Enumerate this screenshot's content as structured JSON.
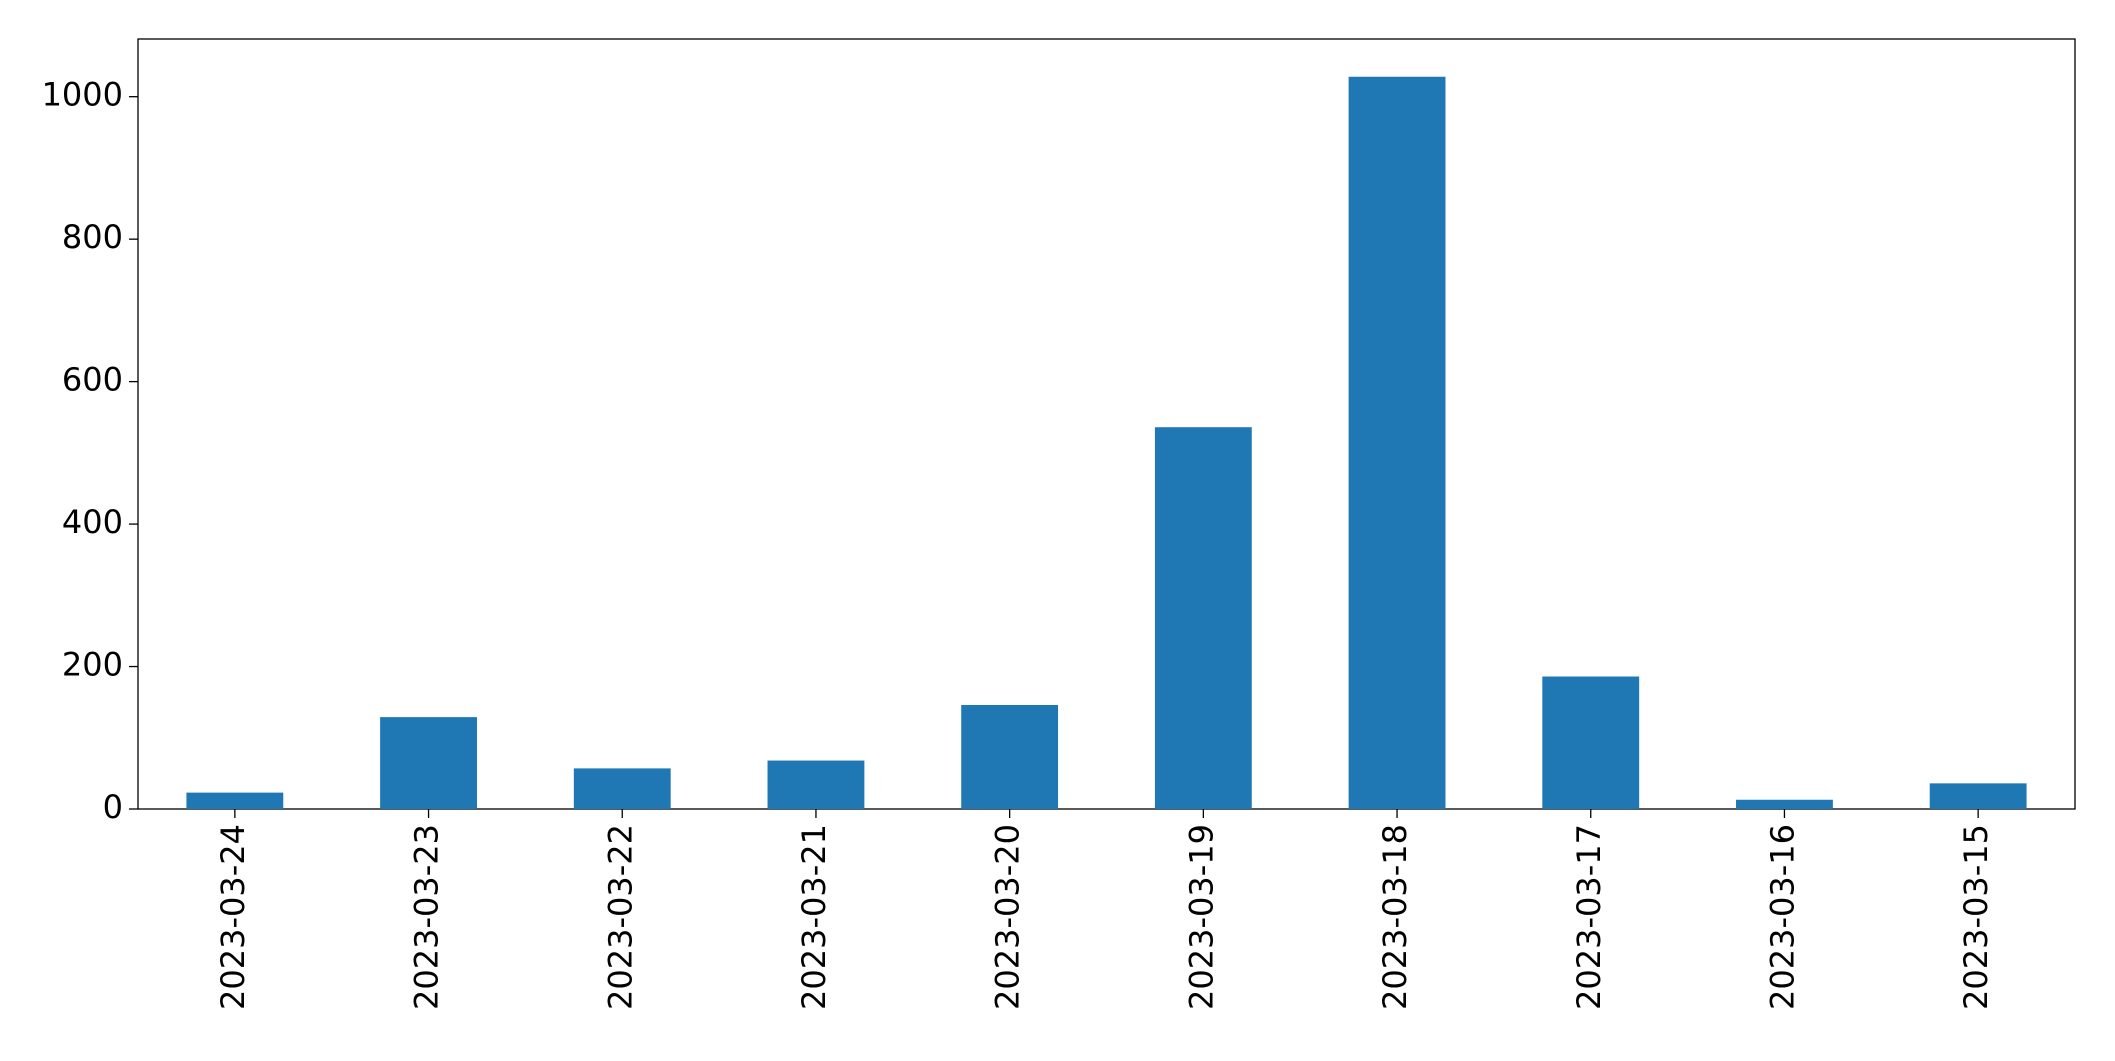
{
  "chart_data": {
    "type": "bar",
    "categories": [
      "2023-03-24",
      "2023-03-23",
      "2023-03-22",
      "2023-03-21",
      "2023-03-20",
      "2023-03-19",
      "2023-03-18",
      "2023-03-17",
      "2023-03-16",
      "2023-03-15"
    ],
    "values": [
      23,
      129,
      57,
      68,
      146,
      536,
      1028,
      186,
      13,
      36
    ],
    "color": "#1f77b4",
    "ylim": [
      0,
      1081
    ],
    "yticks": [
      0,
      200,
      400,
      600,
      800,
      1000
    ],
    "grid": false
  }
}
